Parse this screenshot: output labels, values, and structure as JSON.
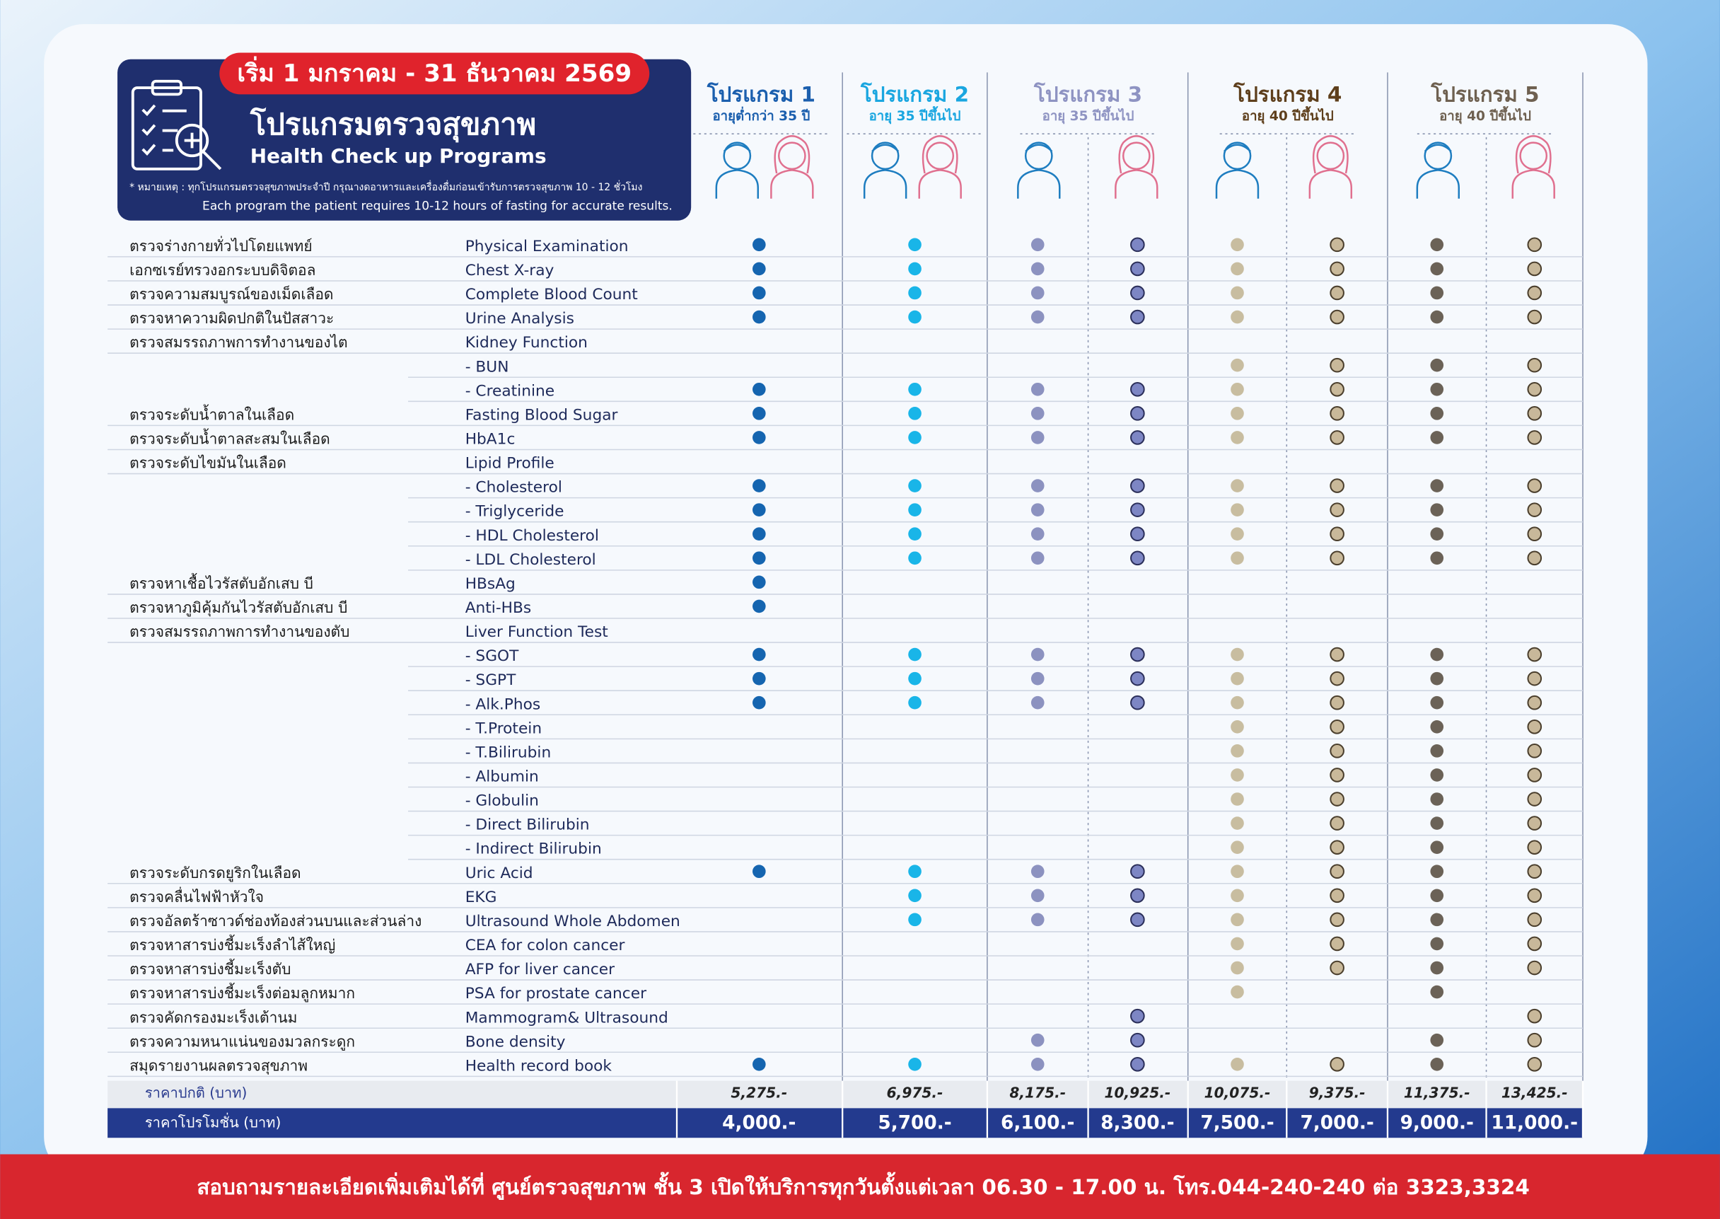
{
  "header": {
    "date": "เริ่ม 1 มกราคม - 31 ธันวาคม 2569",
    "title_th": "โปรแกรมตรวจสุขภาพ",
    "title_en": "Health Check up Programs",
    "note_th": "* หมายเหตุ : ทุกโปรแกรมตรวจสุขภาพประจำปี กรุณางดอาหารและเครื่องดื่มก่อนเข้ารับการตรวจสุขภาพ 10 - 12 ชั่วโมง",
    "note_en": "Each program the patient requires 10-12 hours of fasting for accurate results."
  },
  "programs": [
    {
      "name": "โปรแกรม 1",
      "age": "อายุต่ำกว่า 35 ปี"
    },
    {
      "name": "โปรแกรม 2",
      "age": "อายุ 35 ปีขึ้นไป"
    },
    {
      "name": "โปรแกรม 3",
      "age": "อายุ 35 ปีขึ้นไป"
    },
    {
      "name": "โปรแกรม 4",
      "age": "อายุ 40 ปีขึ้นไป"
    },
    {
      "name": "โปรแกรม 5",
      "age": "อายุ 40 ปีขึ้นไป"
    }
  ],
  "rows": [
    {
      "th": "ตรวจร่างกายทั่วไปโดยแพทย์",
      "en": "Physical Examination",
      "checks": [
        true,
        true,
        true,
        true,
        true,
        true,
        true,
        true
      ]
    },
    {
      "th": "เอกซเรย์ทรวงอกระบบดิจิตอล",
      "en": "Chest X-ray",
      "checks": [
        true,
        true,
        true,
        true,
        true,
        true,
        true,
        true
      ]
    },
    {
      "th": "ตรวจความสมบูรณ์ของเม็ดเลือด",
      "en": "Complete Blood Count",
      "checks": [
        true,
        true,
        true,
        true,
        true,
        true,
        true,
        true
      ]
    },
    {
      "th": "ตรวจหาความผิดปกติในปัสสาวะ",
      "en": "Urine Analysis",
      "checks": [
        true,
        true,
        true,
        true,
        true,
        true,
        true,
        true
      ]
    },
    {
      "th": "ตรวจสมรรถภาพการทำงานของไต",
      "en": "Kidney Function",
      "checks": [
        false,
        false,
        false,
        false,
        false,
        false,
        false,
        false
      ]
    },
    {
      "en": "- BUN",
      "checks": [
        false,
        false,
        false,
        false,
        true,
        true,
        true,
        true
      ]
    },
    {
      "en": "- Creatinine",
      "checks": [
        true,
        true,
        true,
        true,
        true,
        true,
        true,
        true
      ]
    },
    {
      "th": "ตรวจระดับน้ำตาลในเลือด",
      "en": "Fasting Blood Sugar",
      "checks": [
        true,
        true,
        true,
        true,
        true,
        true,
        true,
        true
      ]
    },
    {
      "th": "ตรวจระดับน้ำตาลสะสมในเลือด",
      "en": "HbA1c",
      "checks": [
        true,
        true,
        true,
        true,
        true,
        true,
        true,
        true
      ]
    },
    {
      "th": "ตรวจระดับไขมันในเลือด",
      "en": "Lipid Profile",
      "checks": [
        false,
        false,
        false,
        false,
        false,
        false,
        false,
        false
      ]
    },
    {
      "en": " - Cholesterol",
      "checks": [
        true,
        true,
        true,
        true,
        true,
        true,
        true,
        true
      ]
    },
    {
      "en": " - Triglyceride",
      "checks": [
        true,
        true,
        true,
        true,
        true,
        true,
        true,
        true
      ]
    },
    {
      "en": " - HDL Cholesterol",
      "checks": [
        true,
        true,
        true,
        true,
        true,
        true,
        true,
        true
      ]
    },
    {
      "en": " - LDL Cholesterol",
      "checks": [
        true,
        true,
        true,
        true,
        true,
        true,
        true,
        true
      ]
    },
    {
      "th": "ตรวจหาเชื้อไวรัสตับอักเสบ บี",
      "en": "HBsAg",
      "checks": [
        true,
        false,
        false,
        false,
        false,
        false,
        false,
        false
      ]
    },
    {
      "th": "ตรวจหาภูมิคุ้มกันไวรัสตับอักเสบ บี",
      "en": "Anti-HBs",
      "checks": [
        true,
        false,
        false,
        false,
        false,
        false,
        false,
        false
      ]
    },
    {
      "th": "ตรวจสมรรถภาพการทำงานของตับ",
      "en": "Liver Function Test",
      "checks": [
        false,
        false,
        false,
        false,
        false,
        false,
        false,
        false
      ]
    },
    {
      "en": " - SGOT",
      "checks": [
        true,
        true,
        true,
        true,
        true,
        true,
        true,
        true
      ]
    },
    {
      "en": " - SGPT",
      "checks": [
        true,
        true,
        true,
        true,
        true,
        true,
        true,
        true
      ]
    },
    {
      "en": " - Alk.Phos",
      "checks": [
        true,
        true,
        true,
        true,
        true,
        true,
        true,
        true
      ]
    },
    {
      "en": " - T.Protein",
      "checks": [
        false,
        false,
        false,
        false,
        true,
        true,
        true,
        true
      ]
    },
    {
      "en": " - T.Bilirubin",
      "checks": [
        false,
        false,
        false,
        false,
        true,
        true,
        true,
        true
      ]
    },
    {
      "en": " - Albumin",
      "checks": [
        false,
        false,
        false,
        false,
        true,
        true,
        true,
        true
      ]
    },
    {
      "en": " - Globulin",
      "checks": [
        false,
        false,
        false,
        false,
        true,
        true,
        true,
        true
      ]
    },
    {
      "en": " - Direct Bilirubin",
      "checks": [
        false,
        false,
        false,
        false,
        true,
        true,
        true,
        true
      ]
    },
    {
      "en": " - Indirect Bilirubin",
      "checks": [
        false,
        false,
        false,
        false,
        true,
        true,
        true,
        true
      ]
    },
    {
      "th": "ตรวจระดับกรดยูริกในเลือด",
      "en": "Uric Acid",
      "checks": [
        true,
        true,
        true,
        true,
        true,
        true,
        true,
        true
      ]
    },
    {
      "th": "ตรวจคลื่นไฟฟ้าหัวใจ",
      "en": "EKG",
      "checks": [
        false,
        true,
        true,
        true,
        true,
        true,
        true,
        true
      ]
    },
    {
      "th": "ตรวจอัลตร้าซาวด์ช่องท้องส่วนบนและส่วนล่าง",
      "en": "Ultrasound Whole Abdomen",
      "checks": [
        false,
        true,
        true,
        true,
        true,
        true,
        true,
        true
      ]
    },
    {
      "th": "ตรวจหาสารบ่งชี้มะเร็งลำไส้ใหญ่",
      "en": "CEA for colon cancer",
      "checks": [
        false,
        false,
        false,
        false,
        true,
        true,
        true,
        true
      ]
    },
    {
      "th": "ตรวจหาสารบ่งชี้มะเร็งตับ",
      "en": "AFP for liver cancer",
      "checks": [
        false,
        false,
        false,
        false,
        true,
        true,
        true,
        true
      ]
    },
    {
      "th": "ตรวจหาสารบ่งชี้มะเร็งต่อมลูกหมาก",
      "en": "PSA for prostate cancer",
      "checks": [
        false,
        false,
        false,
        false,
        true,
        false,
        true,
        false
      ]
    },
    {
      "th": "ตรวจคัดกรองมะเร็งเต้านม",
      "en": "Mammogram& Ultrasound",
      "checks": [
        false,
        false,
        false,
        true,
        false,
        false,
        false,
        true
      ]
    },
    {
      "th": "ตรวจความหนาแน่นของมวลกระดูก",
      "en": "Bone density",
      "checks": [
        false,
        false,
        true,
        true,
        false,
        false,
        true,
        true
      ]
    },
    {
      "th": "สมุดรายงานผลตรวจสุขภาพ",
      "en": "Health record book",
      "checks": [
        true,
        true,
        true,
        true,
        true,
        true,
        true,
        true
      ]
    }
  ],
  "prices": {
    "regular_label": "ราคาปกติ (บาท)",
    "regular": [
      "5,275.-",
      "6,975.-",
      "8,175.-",
      "10,925.-",
      "10,075.-",
      "9,375.-",
      "11,375.-",
      "13,425.-"
    ],
    "promo_label": "ราคาโปรโมชั่น (บาท)",
    "promo": [
      "4,000.-",
      "5,700.-",
      "6,100.-",
      "8,300.-",
      "7,500.-",
      "7,000.-",
      "9,000.-",
      "11,000.-"
    ]
  },
  "footer": "สอบถามรายละเอียดเพิ่มเติมได้ที่ ศูนย์ตรวจสุขภาพ ชั้น 3 เปิดให้บริการทุกวันตั้งแต่เวลา 06.30 - 17.00 น. โทร.044-240-240 ต่อ 3323,3324"
}
